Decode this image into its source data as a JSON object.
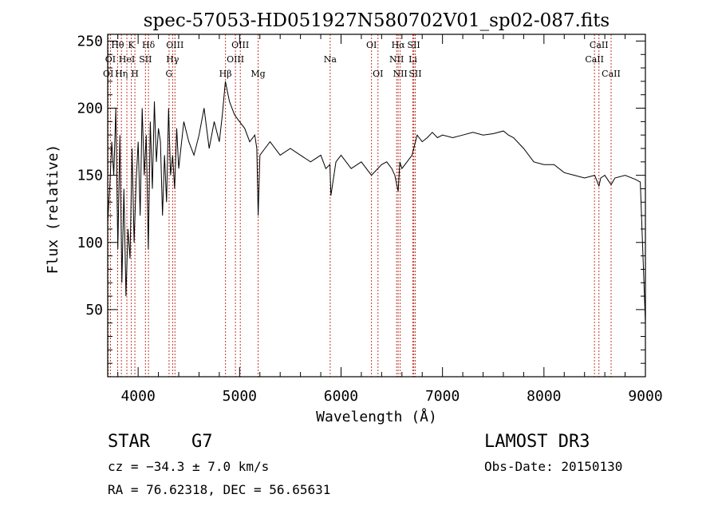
{
  "chart_data": {
    "type": "line",
    "title": "spec-57053-HD051927N580702V01_sp02-087.fits",
    "xlabel": "Wavelength (Å)",
    "ylabel": "Flux (relative)",
    "xlim": [
      3700,
      9000
    ],
    "ylim": [
      0,
      255
    ],
    "xticks": [
      4000,
      5000,
      6000,
      7000,
      8000,
      9000
    ],
    "yticks": [
      50,
      100,
      150,
      200,
      250
    ],
    "grid": false,
    "series": [
      {
        "name": "flux",
        "x": [
          3700,
          3720,
          3740,
          3760,
          3780,
          3800,
          3820,
          3840,
          3860,
          3880,
          3900,
          3920,
          3940,
          3960,
          3980,
          4000,
          4020,
          4040,
          4060,
          4080,
          4100,
          4120,
          4140,
          4160,
          4180,
          4200,
          4220,
          4240,
          4260,
          4280,
          4300,
          4320,
          4340,
          4360,
          4380,
          4400,
          4450,
          4500,
          4550,
          4600,
          4650,
          4700,
          4750,
          4800,
          4830,
          4860,
          4900,
          4950,
          5000,
          5050,
          5100,
          5150,
          5170,
          5183,
          5200,
          5250,
          5300,
          5400,
          5500,
          5600,
          5700,
          5800,
          5850,
          5890,
          5900,
          5950,
          6000,
          6100,
          6200,
          6300,
          6400,
          6450,
          6500,
          6530,
          6563,
          6580,
          6600,
          6650,
          6700,
          6750,
          6800,
          6850,
          6900,
          6950,
          7000,
          7100,
          7200,
          7300,
          7400,
          7500,
          7600,
          7650,
          7700,
          7800,
          7900,
          8000,
          8100,
          8200,
          8300,
          8400,
          8500,
          8542,
          8560,
          8600,
          8662,
          8700,
          8800,
          8900,
          8950,
          9000
        ],
        "values": [
          115,
          140,
          175,
          150,
          200,
          95,
          180,
          70,
          140,
          60,
          110,
          88,
          170,
          100,
          145,
          175,
          120,
          200,
          150,
          180,
          95,
          190,
          140,
          205,
          160,
          185,
          175,
          120,
          165,
          130,
          200,
          150,
          165,
          140,
          185,
          155,
          190,
          175,
          165,
          180,
          200,
          170,
          190,
          175,
          195,
          220,
          205,
          195,
          190,
          185,
          175,
          180,
          170,
          120,
          165,
          170,
          175,
          165,
          170,
          165,
          160,
          165,
          155,
          158,
          135,
          160,
          165,
          155,
          160,
          150,
          158,
          160,
          155,
          150,
          138,
          160,
          155,
          160,
          165,
          180,
          175,
          178,
          182,
          178,
          180,
          178,
          180,
          182,
          180,
          181,
          183,
          180,
          178,
          170,
          160,
          158,
          158,
          152,
          150,
          148,
          150,
          142,
          148,
          150,
          143,
          148,
          150,
          147,
          145,
          40
        ]
      }
    ],
    "lines": [
      {
        "label": "Hθ",
        "x": 3798,
        "row": 1
      },
      {
        "label": "OI",
        "x": 3727,
        "row": 2
      },
      {
        "label": "OI",
        "x": 3705,
        "row": 3
      },
      {
        "label": "Hη",
        "x": 3835,
        "row": 3
      },
      {
        "label": "K",
        "x": 3933,
        "row": 1
      },
      {
        "label": "HeI",
        "x": 3889,
        "row": 2
      },
      {
        "label": "H",
        "x": 3968,
        "row": 3
      },
      {
        "label": "Hδ",
        "x": 4102,
        "row": 1
      },
      {
        "label": "SII",
        "x": 4072,
        "row": 2
      },
      {
        "label": "OIII",
        "x": 4363,
        "row": 1
      },
      {
        "label": "Hγ",
        "x": 4340,
        "row": 2
      },
      {
        "label": "G",
        "x": 4305,
        "row": 3
      },
      {
        "label": "Hβ",
        "x": 4861,
        "row": 3
      },
      {
        "label": "OIII",
        "x": 5007,
        "row": 1
      },
      {
        "label": "OIII",
        "x": 4959,
        "row": 2
      },
      {
        "label": "Mg",
        "x": 5183,
        "row": 3
      },
      {
        "label": "Na",
        "x": 5893,
        "row": 2
      },
      {
        "label": "OI",
        "x": 6300,
        "row": 1
      },
      {
        "label": "OI",
        "x": 6364,
        "row": 3
      },
      {
        "label": "Hα",
        "x": 6563,
        "row": 1
      },
      {
        "label": "NII",
        "x": 6548,
        "row": 2
      },
      {
        "label": "NII",
        "x": 6583,
        "row": 3
      },
      {
        "label": "SII",
        "x": 6717,
        "row": 1
      },
      {
        "label": "Li",
        "x": 6708,
        "row": 2
      },
      {
        "label": "SII",
        "x": 6731,
        "row": 3
      },
      {
        "label": "CaII",
        "x": 8542,
        "row": 1
      },
      {
        "label": "CaII",
        "x": 8498,
        "row": 2
      },
      {
        "label": "CaII",
        "x": 8662,
        "row": 3
      }
    ],
    "line_color": "#c0392b"
  },
  "info": {
    "class_label": "STAR",
    "subclass": "G7",
    "survey": "LAMOST DR3",
    "redshift": "cz = −34.3 ± 7.0 km/s",
    "obs_date": "Obs-Date: 20150130",
    "coords": "RA =  76.62318, DEC =  56.65631"
  }
}
